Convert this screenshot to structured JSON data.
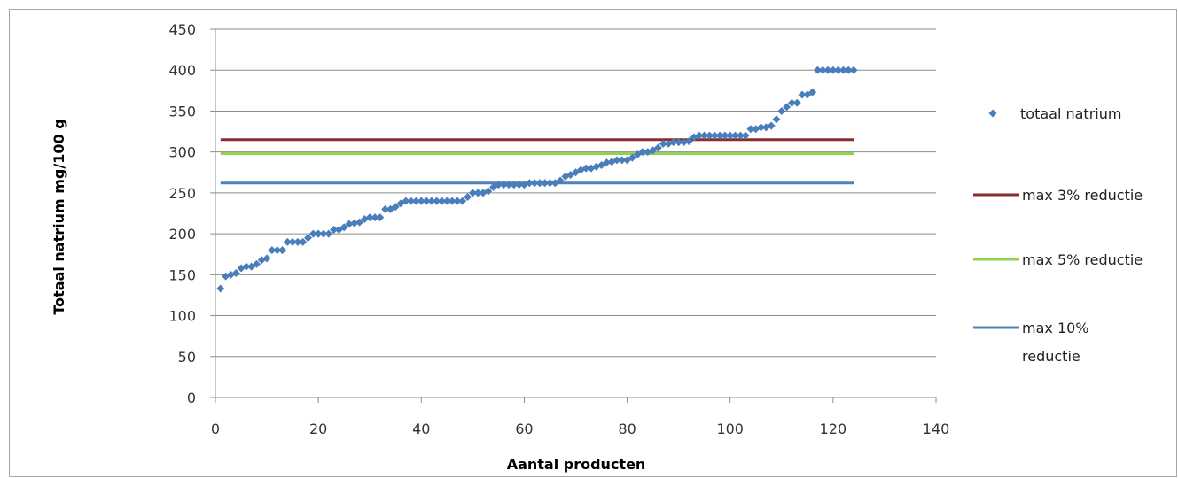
{
  "chart_data": {
    "type": "scatter",
    "xlabel": "Aantal producten",
    "ylabel": "Totaal natrium mg/100 g",
    "xlim": [
      0,
      140
    ],
    "ylim": [
      0,
      450
    ],
    "xticks": [
      0,
      20,
      40,
      60,
      80,
      100,
      120,
      140
    ],
    "yticks": [
      0,
      50,
      100,
      150,
      200,
      250,
      300,
      350,
      400,
      450
    ],
    "grid": "horizontal",
    "legend_position": "right",
    "series": [
      {
        "name": "totaal natrium",
        "type": "scatter",
        "marker": "diamond",
        "color": "#4a7ebb",
        "x": [
          1,
          2,
          3,
          4,
          5,
          6,
          7,
          8,
          9,
          10,
          11,
          12,
          13,
          14,
          15,
          16,
          17,
          18,
          19,
          20,
          21,
          22,
          23,
          24,
          25,
          26,
          27,
          28,
          29,
          30,
          31,
          32,
          33,
          34,
          35,
          36,
          37,
          38,
          39,
          40,
          41,
          42,
          43,
          44,
          45,
          46,
          47,
          48,
          49,
          50,
          51,
          52,
          53,
          54,
          55,
          56,
          57,
          58,
          59,
          60,
          61,
          62,
          63,
          64,
          65,
          66,
          67,
          68,
          69,
          70,
          71,
          72,
          73,
          74,
          75,
          76,
          77,
          78,
          79,
          80,
          81,
          82,
          83,
          84,
          85,
          86,
          87,
          88,
          89,
          90,
          91,
          92,
          93,
          94,
          95,
          96,
          97,
          98,
          99,
          100,
          101,
          102,
          103,
          104,
          105,
          106,
          107,
          108,
          109,
          110,
          111,
          112,
          113,
          114,
          115,
          116,
          117,
          118,
          119,
          120,
          121,
          122,
          123,
          124
        ],
        "y": [
          133,
          148,
          150,
          152,
          158,
          160,
          160,
          163,
          168,
          170,
          180,
          180,
          180,
          190,
          190,
          190,
          190,
          195,
          200,
          200,
          200,
          200,
          205,
          205,
          208,
          212,
          213,
          214,
          218,
          220,
          220,
          220,
          230,
          230,
          233,
          237,
          240,
          240,
          240,
          240,
          240,
          240,
          240,
          240,
          240,
          240,
          240,
          240,
          245,
          250,
          250,
          250,
          252,
          257,
          260,
          260,
          260,
          260,
          260,
          260,
          262,
          262,
          262,
          262,
          262,
          262,
          265,
          270,
          272,
          275,
          278,
          280,
          280,
          282,
          284,
          287,
          288,
          290,
          290,
          290,
          293,
          297,
          300,
          300,
          302,
          305,
          310,
          310,
          312,
          312,
          312,
          313,
          318,
          320,
          320,
          320,
          320,
          320,
          320,
          320,
          320,
          320,
          320,
          328,
          328,
          330,
          330,
          332,
          340,
          350,
          355,
          360,
          360,
          370,
          370,
          373,
          400,
          400,
          400,
          400,
          400,
          400,
          400,
          400
        ]
      },
      {
        "name": "max 3% reductie",
        "type": "line",
        "color": "#8b2c2c",
        "x": [
          1,
          124
        ],
        "y": [
          315,
          315
        ]
      },
      {
        "name": "max 5% reductie",
        "type": "line",
        "color": "#92d050",
        "x": [
          1,
          124
        ],
        "y": [
          298,
          298
        ]
      },
      {
        "name": "max 10% reductie",
        "type": "line",
        "color": "#4f81bd",
        "x": [
          1,
          124
        ],
        "y": [
          262,
          262
        ]
      }
    ]
  }
}
